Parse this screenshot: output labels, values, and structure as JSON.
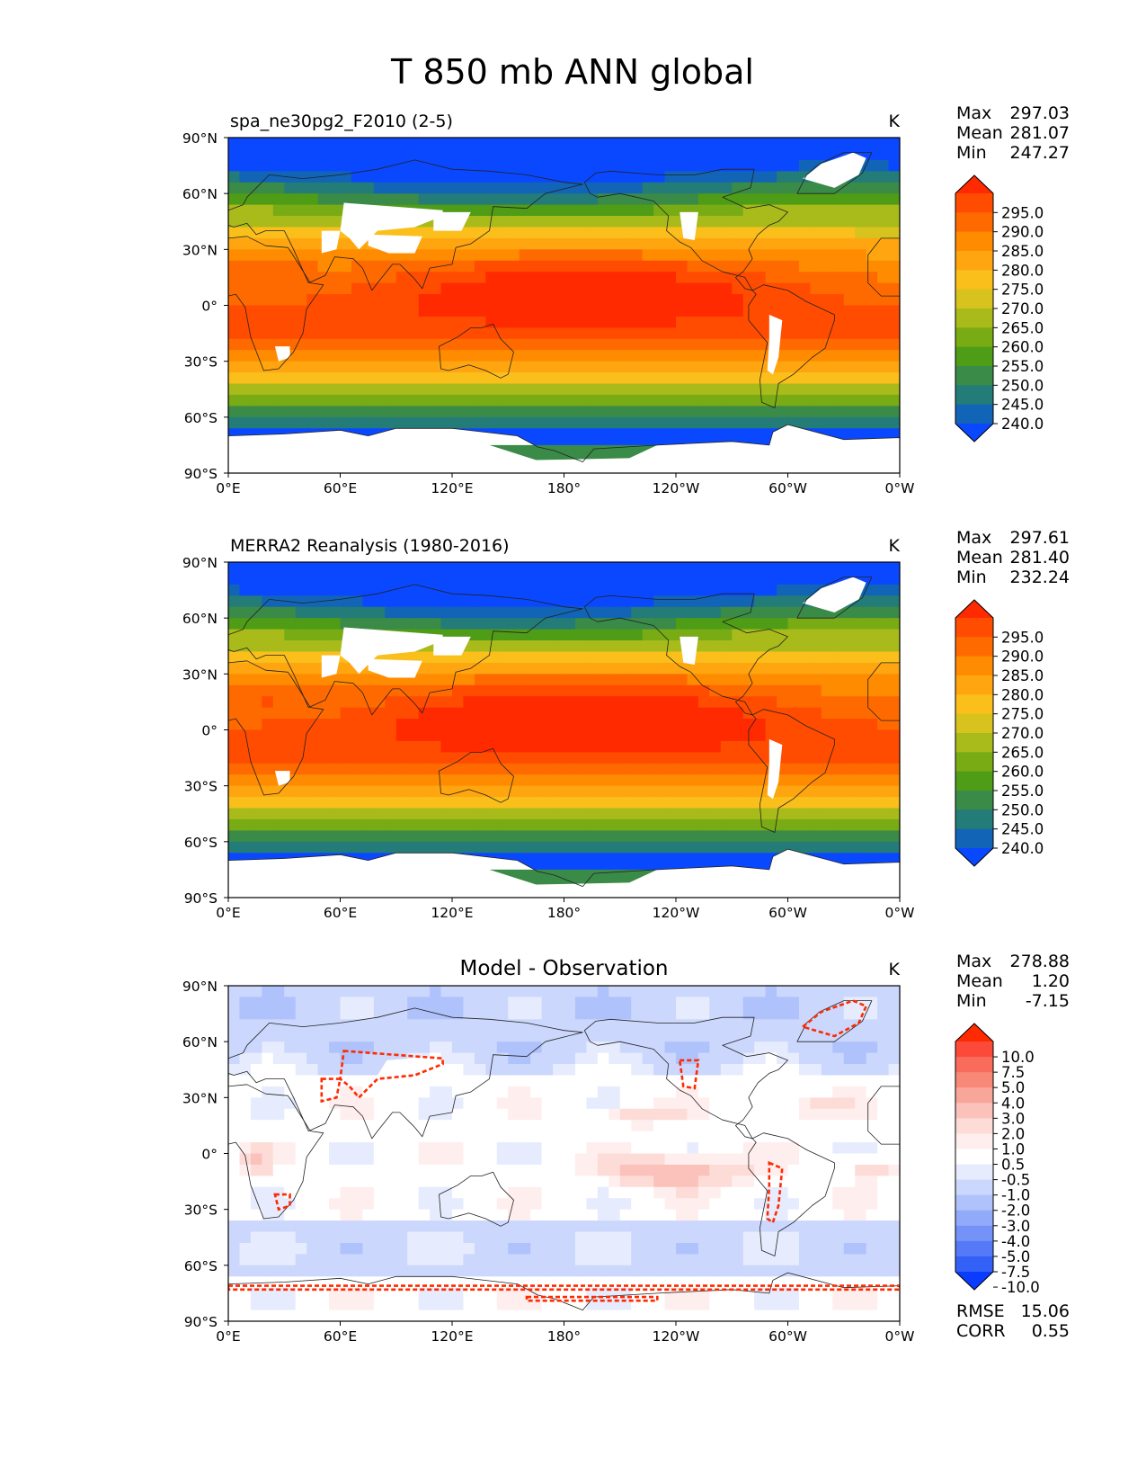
{
  "figure_title": "T 850 mb ANN global",
  "chart_data": [
    {
      "type": "heatmap",
      "title": "spa_ne30pg2_F2010 (2-5)",
      "units": "K",
      "stats": [
        [
          "Max",
          "297.03"
        ],
        [
          "Mean",
          "281.07"
        ],
        [
          "Min",
          "247.27"
        ]
      ],
      "xticks": [
        "0°E",
        "60°E",
        "120°E",
        "180°",
        "120°W",
        "60°W",
        "0°W"
      ],
      "yticks": [
        "90°N",
        "60°N",
        "30°N",
        "0°",
        "30°S",
        "60°S",
        "90°S"
      ],
      "xlim": [
        0,
        360
      ],
      "ylim": [
        -90,
        90
      ],
      "colorbar": {
        "labels": [
          "295.0",
          "290.0",
          "285.0",
          "280.0",
          "275.0",
          "270.0",
          "265.0",
          "260.0",
          "255.0",
          "250.0",
          "245.0",
          "240.0"
        ],
        "colors": [
          "#ff2a00",
          "#ff4c00",
          "#ff6a00",
          "#ff8c00",
          "#ffa510",
          "#fbbf1c",
          "#d7c21e",
          "#a8bb1a",
          "#79ab15",
          "#4f9c16",
          "#3a8a48",
          "#237c78",
          "#1264b6",
          "#0a48ff"
        ],
        "extend": "both"
      }
    },
    {
      "type": "heatmap",
      "title": "MERRA2 Reanalysis (1980-2016)",
      "units": "K",
      "stats": [
        [
          "Max",
          "297.61"
        ],
        [
          "Mean",
          "281.40"
        ],
        [
          "Min",
          "232.24"
        ]
      ],
      "xticks": [
        "0°E",
        "60°E",
        "120°E",
        "180°",
        "120°W",
        "60°W",
        "0°W"
      ],
      "yticks": [
        "90°N",
        "60°N",
        "30°N",
        "0°",
        "30°S",
        "60°S",
        "90°S"
      ],
      "xlim": [
        0,
        360
      ],
      "ylim": [
        -90,
        90
      ],
      "colorbar": {
        "labels": [
          "295.0",
          "290.0",
          "285.0",
          "280.0",
          "275.0",
          "270.0",
          "265.0",
          "260.0",
          "255.0",
          "250.0",
          "245.0",
          "240.0"
        ],
        "colors": [
          "#ff2a00",
          "#ff4c00",
          "#ff6a00",
          "#ff8c00",
          "#ffa510",
          "#fbbf1c",
          "#d7c21e",
          "#a8bb1a",
          "#79ab15",
          "#4f9c16",
          "#3a8a48",
          "#237c78",
          "#1264b6",
          "#0a48ff"
        ],
        "extend": "both"
      }
    },
    {
      "type": "heatmap",
      "title": "Model - Observation",
      "units": "K",
      "stats": [
        [
          "Max",
          "278.88"
        ],
        [
          "Mean",
          "1.20"
        ],
        [
          "Min",
          "-7.15"
        ]
      ],
      "extra_stats": [
        [
          "RMSE",
          "15.06"
        ],
        [
          "CORR",
          "0.55"
        ]
      ],
      "xticks": [
        "0°E",
        "60°E",
        "120°E",
        "180°",
        "120°W",
        "60°W",
        "0°W"
      ],
      "yticks": [
        "90°N",
        "60°N",
        "30°N",
        "0°",
        "30°S",
        "60°S",
        "90°S"
      ],
      "xlim": [
        0,
        360
      ],
      "ylim": [
        -90,
        90
      ],
      "colorbar": {
        "labels": [
          "10.0",
          "7.5",
          "5.0",
          "4.0",
          "3.0",
          "2.0",
          "1.0",
          "0.5",
          "-0.5",
          "-1.0",
          "-2.0",
          "-3.0",
          "-4.0",
          "-5.0",
          "-7.5",
          "-10.0"
        ],
        "colors": [
          "#ff2a00",
          "#fc4a3a",
          "#f96b5a",
          "#f88877",
          "#f9a69a",
          "#fbc2bb",
          "#fddcd8",
          "#ffeeee",
          "#ffffff",
          "#e6ecfd",
          "#cbd7fc",
          "#afc2fb",
          "#92aafa",
          "#7592f8",
          "#5679f7",
          "#3361f7",
          "#0a3cff"
        ],
        "extend": "both"
      }
    }
  ]
}
